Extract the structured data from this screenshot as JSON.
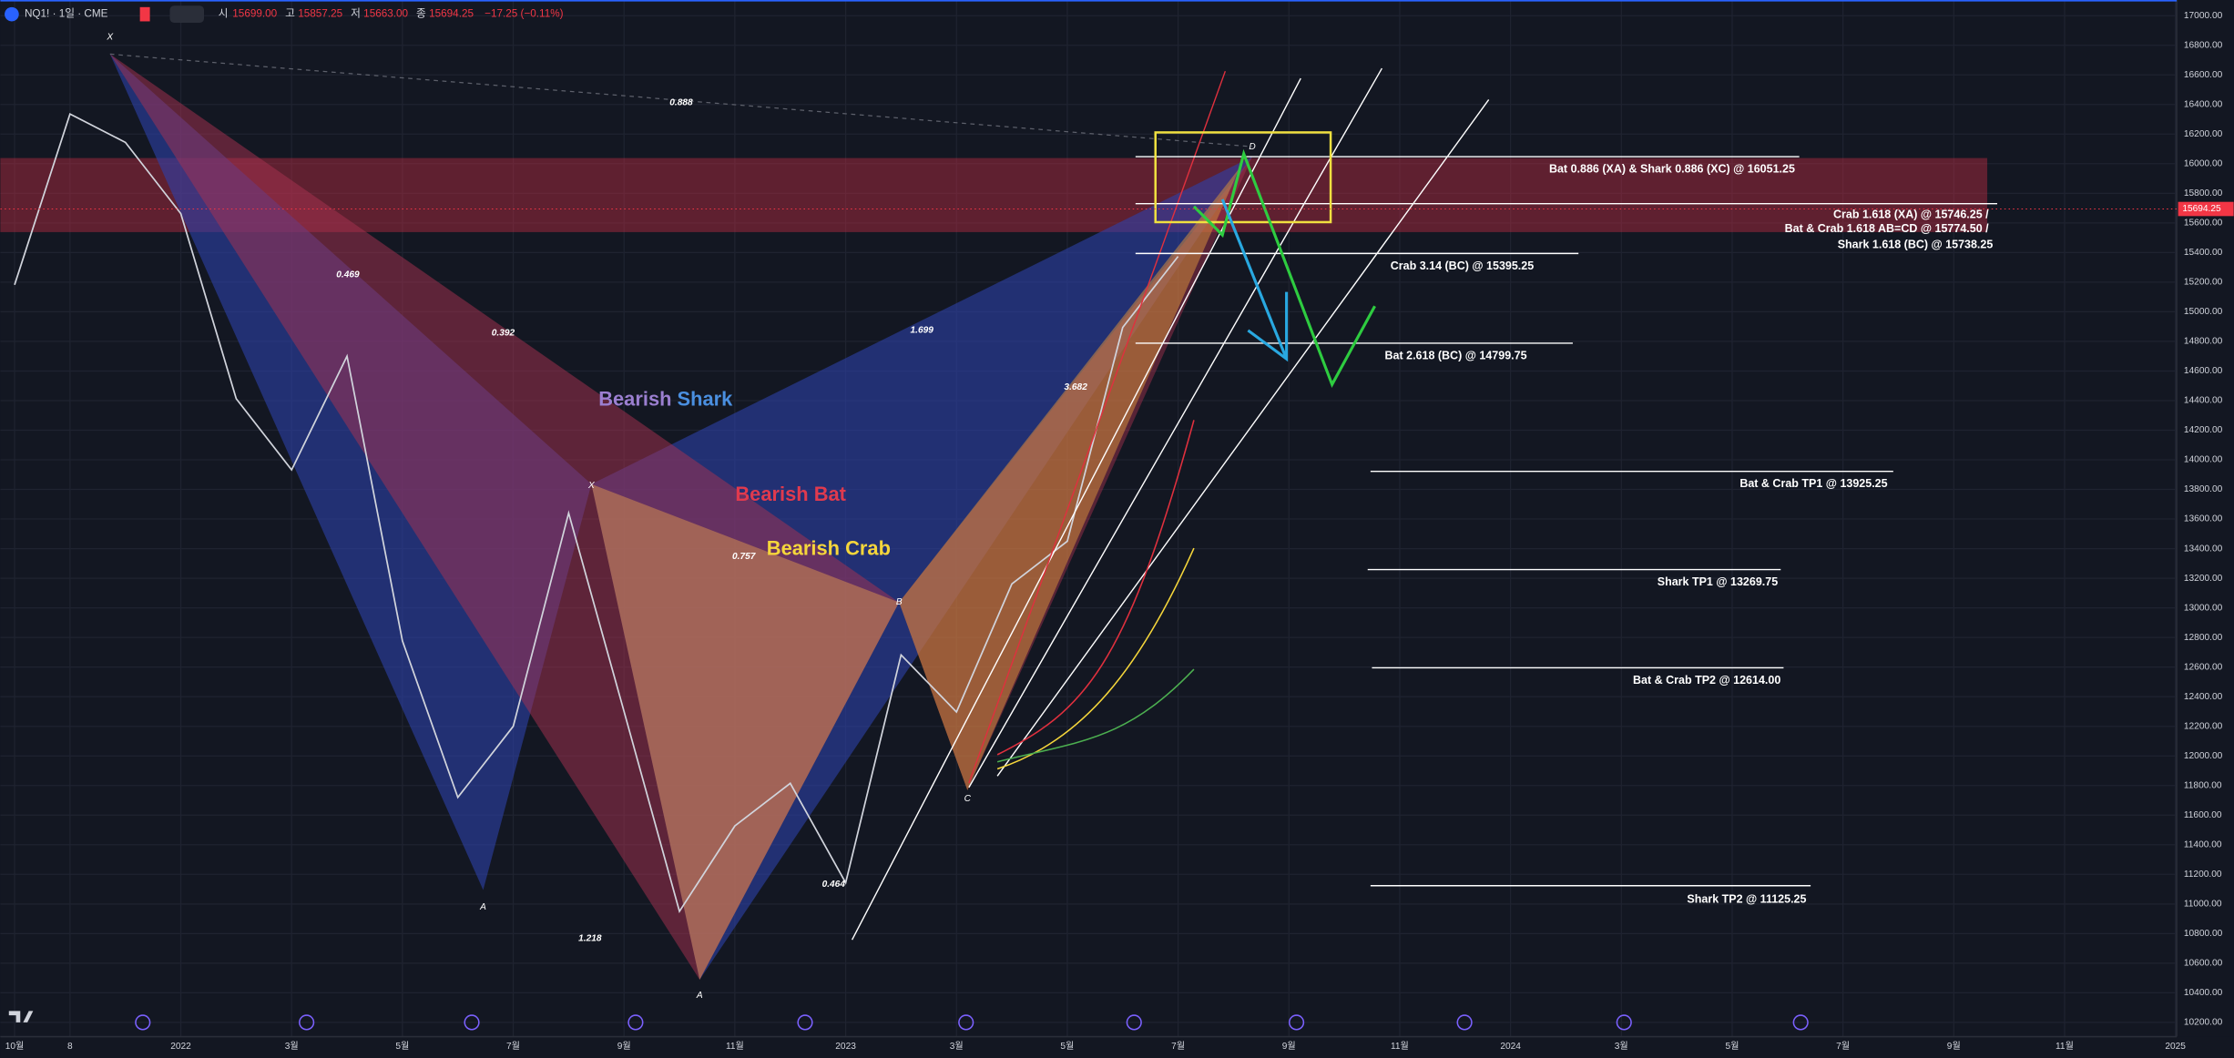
{
  "header": {
    "symbol": "NQ1! · 1일 · CME",
    "open_label": "시",
    "open": "15699.00",
    "high_label": "고",
    "high": "15857.25",
    "low_label": "저",
    "low": "15663.00",
    "close_label": "종",
    "close": "15694.25",
    "change": "−17.25 (−0.11%)"
  },
  "chart_data": {
    "type": "line",
    "categories": [
      "10월",
      "8",
      null,
      "2022",
      null,
      "3월",
      null,
      "5월",
      null,
      "7월",
      null,
      "9월",
      null,
      "11월",
      null,
      "2023",
      null,
      "3월",
      null,
      "5월",
      null,
      "7월",
      null,
      "9월",
      null,
      "11월",
      null,
      "2024",
      null,
      "3월",
      null,
      "5월",
      null,
      "7월",
      null,
      "9월",
      null,
      "11월",
      null,
      "2025"
    ],
    "series": [
      {
        "name": "NQ1!",
        "color": "#d1d4dc",
        "values": [
          15182,
          16336,
          16144,
          15663,
          14413,
          13932,
          14700,
          12777,
          11720,
          12200,
          13640,
          12300,
          10950,
          11527,
          11815,
          11143,
          12682,
          12297,
          13162,
          13450,
          14894,
          15374,
          null,
          null,
          null,
          null,
          null,
          null,
          null,
          null,
          null,
          null,
          null,
          null,
          null,
          null,
          null,
          null,
          null,
          null
        ]
      }
    ],
    "ylim": [
      10100,
      17100
    ],
    "yticks": [
      {
        "value": 10200,
        "label": "10200.00"
      },
      {
        "value": 10400,
        "label": "10400.00"
      },
      {
        "value": 10600,
        "label": "10600.00"
      },
      {
        "value": 10800,
        "label": "10800.00"
      },
      {
        "value": 11000,
        "label": "11000.00"
      },
      {
        "value": 11200,
        "label": "11200.00"
      },
      {
        "value": 11400,
        "label": "11400.00"
      },
      {
        "value": 11600,
        "label": "11600.00"
      },
      {
        "value": 11800,
        "label": "11800.00"
      },
      {
        "value": 12000,
        "label": "12000.00"
      },
      {
        "value": 12200,
        "label": "12200.00"
      },
      {
        "value": 12400,
        "label": "12400.00"
      },
      {
        "value": 12600,
        "label": "12600.00"
      },
      {
        "value": 12800,
        "label": "12800.00"
      },
      {
        "value": 13000,
        "label": "13000.00"
      },
      {
        "value": 13200,
        "label": "13200.00"
      },
      {
        "value": 13400,
        "label": "13400.00"
      },
      {
        "value": 13600,
        "label": "13600.00"
      },
      {
        "value": 13800,
        "label": "13800.00"
      },
      {
        "value": 14000,
        "label": "14000.00"
      },
      {
        "value": 14200,
        "label": "14200.00"
      },
      {
        "value": 14400,
        "label": "14400.00"
      },
      {
        "value": 14600,
        "label": "14600.00"
      },
      {
        "value": 14800,
        "label": "14800.00"
      },
      {
        "value": 15000,
        "label": "15000.00"
      },
      {
        "value": 15200,
        "label": "15200.00"
      },
      {
        "value": 15400,
        "label": "15400.00"
      },
      {
        "value": 15600,
        "label": "15600.00"
      },
      {
        "value": 15800,
        "label": "15800.00"
      },
      {
        "value": 16000,
        "label": "16000.00"
      },
      {
        "value": 16200,
        "label": "16200.00"
      },
      {
        "value": 16400,
        "label": "16400.00"
      },
      {
        "value": 16600,
        "label": "16600.00"
      },
      {
        "value": 16800,
        "label": "16800.00"
      },
      {
        "value": 17000,
        "label": "17000.00"
      }
    ],
    "grid": true,
    "last_price": {
      "value": 15694.25,
      "label": "15694.25"
    },
    "annotations": {
      "ratios": [
        "0.888",
        "0.392",
        "0.469",
        "1.699",
        "3.682",
        "0.757",
        "1.218",
        "0.464"
      ],
      "points": [
        "X",
        "A",
        "X",
        "A",
        "B",
        "C",
        "D"
      ],
      "pattern_titles": {
        "shark": [
          "Bearish",
          "Shark"
        ],
        "bat": "Bearish Bat",
        "crab": "Bearish Crab"
      },
      "levels": [
        "Bat 0.886 (XA) & Shark 0.886 (XC) @ 16051.25",
        "Crab 1.618 (XA) @ 15746.25 /",
        "Bat & Crab 1.618 AB=CD @ 15774.50 /",
        "Shark 1.618 (BC) @ 15738.25",
        "Crab 3.14 (BC) @ 15395.25",
        "Bat 2.618 (BC) @ 14799.75",
        "Bat & Crab TP1 @ 13925.25",
        "Shark TP1 @ 13269.75",
        "Bat & Crab TP2 @ 12614.00",
        "Shark TP2 @ 11125.25"
      ]
    }
  }
}
